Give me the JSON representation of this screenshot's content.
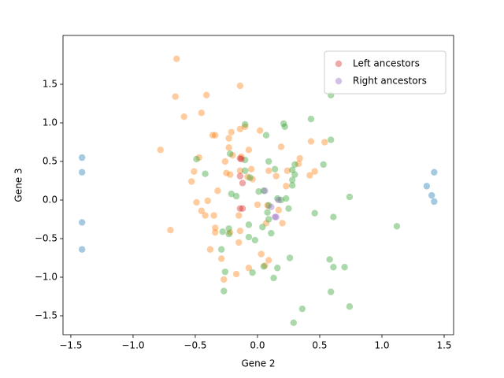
{
  "chart_data": {
    "type": "scatter",
    "xlabel": "Gene 2",
    "ylabel": "Gene 3",
    "xlim": [
      -1.563,
      1.576
    ],
    "ylim": [
      -1.745,
      2.133
    ],
    "xticks": [
      {
        "value": -1.5,
        "label": "−1.5"
      },
      {
        "value": -1.0,
        "label": "−1.0"
      },
      {
        "value": -0.5,
        "label": "−0.5"
      },
      {
        "value": 0,
        "label": "0.0"
      },
      0.5,
      {
        "value": 1.0,
        "label": "1.0"
      },
      1.5
    ],
    "yticks": [
      {
        "value": -1.5,
        "label": "−1.5"
      },
      {
        "value": -1.0,
        "label": "−1.0"
      },
      {
        "value": -0.5,
        "label": "−0.5"
      },
      {
        "value": 0,
        "label": "0.0"
      },
      0.5,
      {
        "value": 1.0,
        "label": "1.0"
      },
      1.5
    ],
    "legend": "upper right",
    "opacity": 0.4,
    "series": [
      {
        "color": "#1f77b4",
        "x": [
          -1.41,
          -1.41,
          -1.41,
          -1.41,
          1.42,
          1.36,
          1.4,
          1.42
        ],
        "values": [
          0.55,
          0.36,
          -0.29,
          -0.64,
          0.36,
          0.18,
          0.06,
          -0.02
        ]
      },
      {
        "color": "#ff7f0e",
        "x": [
          -0.65,
          -0.66,
          -0.41,
          -0.14,
          -0.59,
          -0.45,
          -0.36,
          -0.34,
          -0.21,
          -0.23,
          -0.14,
          -0.1,
          -0.23,
          -0.78,
          -0.47,
          -0.26,
          -0.2,
          -0.07,
          -0.13,
          0.02,
          0.19,
          0.43,
          0.54,
          0.34,
          0.33,
          0.46,
          0.42,
          -0.51,
          -0.53,
          -0.25,
          -0.22,
          -0.14,
          -0.05,
          -0.04,
          -0.08,
          0.09,
          0.15,
          0.24,
          0.23,
          -0.49,
          -0.4,
          -0.32,
          -0.45,
          -0.42,
          -0.35,
          -0.15,
          0.0,
          0.08,
          0.17,
          0.2,
          0.07,
          -0.34,
          -0.34,
          -0.14,
          -0.15,
          -0.38,
          -0.29,
          -0.07,
          0.03,
          0.09,
          -0.17,
          -0.27,
          -0.7,
          0.06,
          -0.22
        ],
        "values": [
          1.83,
          1.34,
          1.36,
          1.48,
          1.08,
          1.13,
          0.84,
          0.84,
          0.88,
          0.68,
          0.92,
          0.95,
          0.8,
          0.65,
          0.55,
          0.5,
          0.58,
          0.65,
          0.56,
          0.9,
          0.69,
          0.76,
          0.75,
          0.54,
          0.47,
          0.37,
          0.32,
          0.37,
          0.24,
          0.35,
          0.33,
          0.38,
          0.4,
          0.27,
          0.3,
          0.38,
          0.31,
          0.38,
          0.18,
          -0.03,
          -0.01,
          0.12,
          -0.14,
          -0.2,
          -0.2,
          -0.2,
          -0.06,
          -0.07,
          -0.13,
          -0.3,
          -0.3,
          -0.36,
          -0.42,
          -0.4,
          -0.55,
          -0.64,
          -0.76,
          -0.88,
          -0.7,
          -0.78,
          -0.96,
          -1.03,
          -0.39,
          -0.85,
          -0.42
        ]
      },
      {
        "color": "#2ca02c",
        "x": [
          0.59,
          0.43,
          0.21,
          0.22,
          -0.1,
          0.07,
          0.59,
          -0.49,
          -0.42,
          -0.22,
          -0.1,
          -0.1,
          -0.06,
          0.09,
          0.3,
          0.53,
          0.14,
          0.28,
          0.3,
          0.28,
          0.28,
          -0.17,
          -0.21,
          0.01,
          0.16,
          0.19,
          0.23,
          0.09,
          0.08,
          0.25,
          0.46,
          0.61,
          0.74,
          1.12,
          0.04,
          -0.07,
          0.11,
          -0.23,
          -0.23,
          -0.28,
          -0.07,
          -0.02,
          -0.29,
          0.26,
          0.58,
          0.61,
          0.7,
          0.05,
          0.16,
          -0.26,
          -0.04,
          0.13,
          -0.27,
          0.59,
          0.74,
          0.36,
          0.29,
          0.05,
          0.09
        ],
        "values": [
          1.36,
          1.05,
          0.99,
          0.95,
          0.98,
          0.84,
          0.78,
          0.53,
          0.34,
          0.6,
          0.52,
          0.38,
          0.29,
          0.5,
          0.46,
          0.46,
          0.4,
          0.39,
          0.33,
          0.26,
          0.19,
          0.05,
          0.08,
          0.11,
          0.02,
          0.0,
          0.02,
          -0.07,
          -0.16,
          -0.11,
          -0.17,
          -0.22,
          0.04,
          -0.34,
          -0.35,
          -0.32,
          -0.43,
          -0.37,
          -0.44,
          -0.41,
          -0.48,
          -0.52,
          -0.64,
          -0.75,
          -0.77,
          -0.87,
          -0.87,
          -0.86,
          -0.88,
          -0.93,
          -0.94,
          -1.01,
          -1.18,
          -1.19,
          -1.38,
          -1.41,
          -1.59,
          0.12,
          -0.25
        ]
      },
      {
        "name": "Left ancestors",
        "color": "#d62728",
        "x": [
          -0.14,
          -0.13,
          -0.14,
          -0.12,
          -0.14,
          -0.12
        ],
        "values": [
          0.54,
          0.53,
          0.31,
          0.22,
          -0.11,
          -0.11
        ]
      },
      {
        "name": "Right ancestors",
        "color": "#9467bd",
        "x": [
          0.06,
          0.17,
          0.11,
          0.14,
          0.15
        ],
        "values": [
          0.12,
          0.0,
          -0.09,
          -0.22,
          -0.22
        ]
      }
    ]
  }
}
